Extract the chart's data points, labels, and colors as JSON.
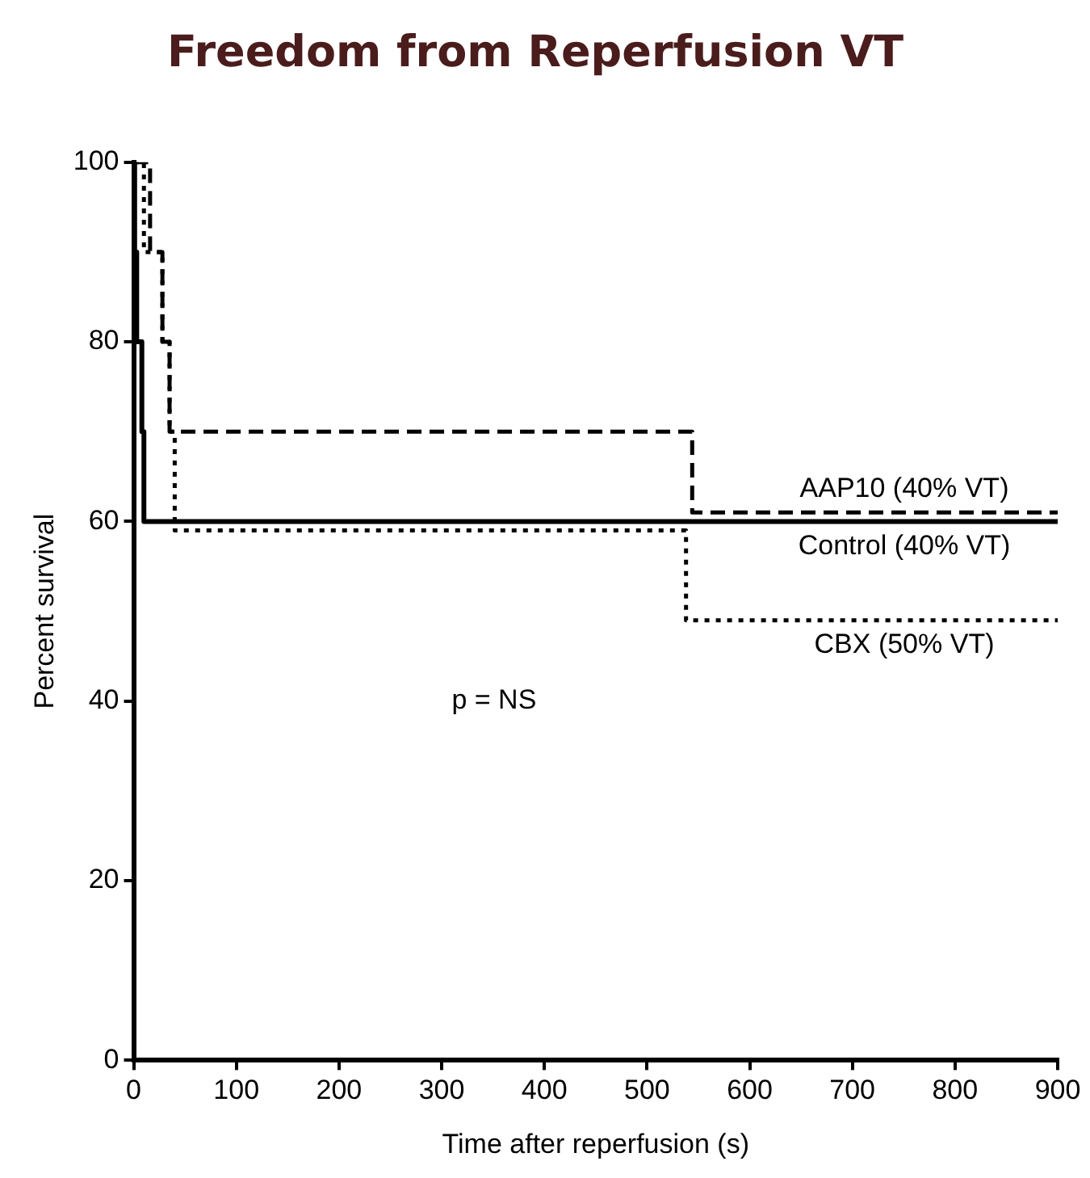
{
  "chart_data": {
    "type": "step",
    "title": "Freedom from Reperfusion VT",
    "xlabel": "Time after reperfusion (s)",
    "ylabel": "Percent survival",
    "xlim": [
      0,
      900
    ],
    "xticks": [
      0,
      100,
      200,
      300,
      400,
      500,
      600,
      700,
      800,
      900
    ],
    "ylim": [
      0,
      100
    ],
    "yticks": [
      0,
      20,
      40,
      60,
      80,
      100
    ],
    "grid": false,
    "legend": false,
    "marker": "none",
    "annotations": [
      "p = NS"
    ],
    "series": [
      {
        "name": "AAP10 (40% VT)",
        "color": "#000000",
        "line_style": "dashed",
        "x": [
          0,
          16,
          28,
          35,
          544,
          900
        ],
        "values": [
          100,
          90,
          80,
          70,
          61,
          61
        ]
      },
      {
        "name": "Control (40% VT)",
        "color": "#000000",
        "line_style": "solid",
        "x": [
          0,
          1,
          3,
          8,
          10,
          900
        ],
        "values": [
          100,
          90,
          80,
          70,
          60,
          60
        ]
      },
      {
        "name": "CBX (50% VT)",
        "color": "#000000",
        "line_style": "dotted",
        "x": [
          0,
          10,
          28,
          35,
          40,
          538,
          900
        ],
        "values": [
          100,
          90,
          80,
          70,
          59,
          49,
          49
        ]
      }
    ]
  }
}
